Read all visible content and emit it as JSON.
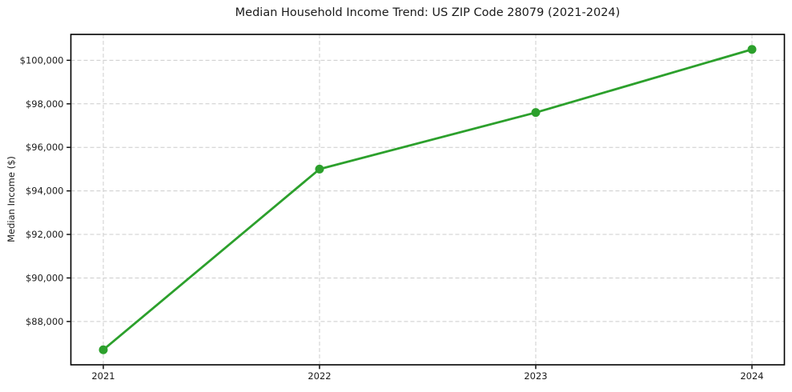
{
  "chart_data": {
    "type": "line",
    "title": "Median Household Income Trend: US ZIP Code 28079 (2021-2024)",
    "xlabel": "",
    "ylabel": "Median Income ($)",
    "x": [
      2021,
      2022,
      2023,
      2024
    ],
    "x_tick_labels": [
      "2021",
      "2022",
      "2023",
      "2024"
    ],
    "values": [
      86700,
      95000,
      97600,
      100500
    ],
    "yticks": [
      88000,
      90000,
      92000,
      94000,
      96000,
      98000,
      100000
    ],
    "y_tick_labels": [
      "$88,000",
      "$90,000",
      "$92,000",
      "$94,000",
      "$96,000",
      "$98,000",
      "$100,000"
    ],
    "ylim": [
      86010,
      101190
    ],
    "xlim": [
      2020.85,
      2024.15
    ],
    "grid": true,
    "grid_style": "dashed",
    "legend": false,
    "marker": "circle",
    "line_color": "#2ca02c",
    "grid_color": "#cccccc",
    "axis_color": "#000000",
    "text_color": "#1a1a1a",
    "background_color": "#ffffff"
  }
}
